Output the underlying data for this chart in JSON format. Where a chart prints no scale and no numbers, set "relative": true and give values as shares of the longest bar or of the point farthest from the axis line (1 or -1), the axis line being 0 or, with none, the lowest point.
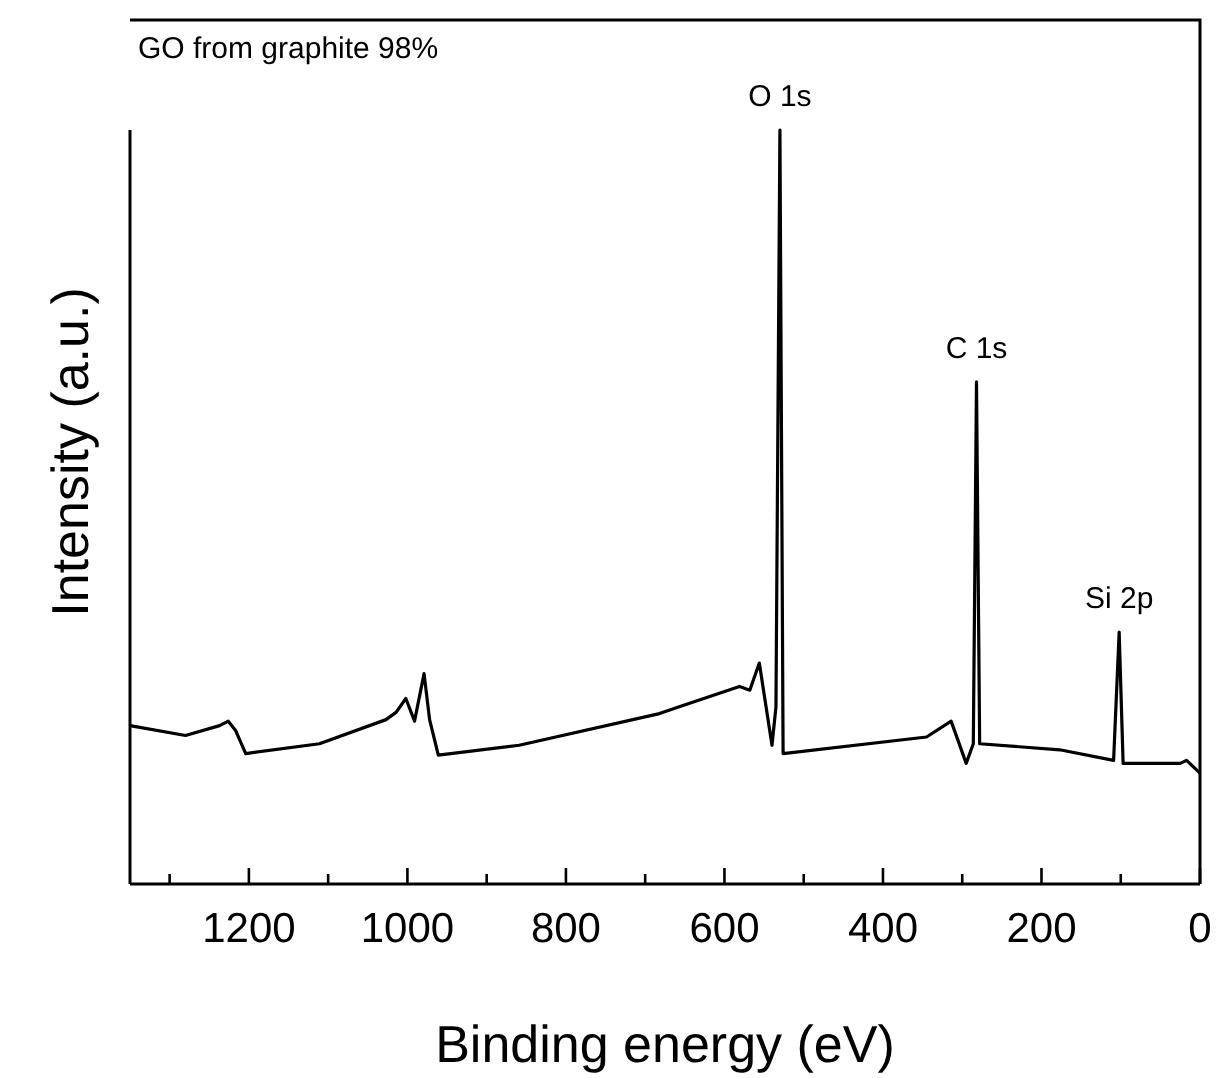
{
  "chart_data": {
    "type": "line",
    "title": "GO from graphite 98%",
    "xlabel": "Binding energy (eV)",
    "ylabel": "Intensity (a.u.)",
    "relative": true,
    "xlim": [
      1350,
      0
    ],
    "xticks": [
      {
        "value": 1300,
        "label": null
      },
      1200,
      {
        "value": 1100,
        "label": null
      },
      1000,
      {
        "value": 900,
        "label": null
      },
      800,
      {
        "value": 700,
        "label": null
      },
      600,
      {
        "value": 500,
        "label": null
      },
      400,
      {
        "value": 300,
        "label": null
      },
      200,
      {
        "value": 100,
        "label": null
      },
      0
    ],
    "x": [
      1350,
      1280,
      1237,
      1226,
      1217,
      1204,
      1111,
      1027,
      1014,
      1002,
      991,
      979,
      972,
      961,
      859,
      682,
      657,
      581,
      568,
      556,
      540,
      535,
      530,
      526,
      345,
      314,
      295,
      286,
      282,
      278,
      177,
      109,
      102,
      97,
      25,
      17,
      0
    ],
    "series": [
      {
        "color": "#000000",
        "values": [
          0.21,
          0.197,
          0.21,
          0.216,
          0.204,
          0.173,
          0.186,
          0.218,
          0.228,
          0.246,
          0.216,
          0.279,
          0.218,
          0.171,
          0.184,
          0.226,
          0.235,
          0.262,
          0.257,
          0.293,
          0.184,
          0.235,
          1.0,
          0.173,
          0.195,
          0.216,
          0.16,
          0.186,
          0.666,
          0.186,
          0.178,
          0.164,
          0.334,
          0.16,
          0.16,
          0.164,
          0.147
        ]
      }
    ],
    "annotations": [
      {
        "text": "O 1s",
        "x": 530,
        "y": 1.0
      },
      {
        "text": "C 1s",
        "x": 282,
        "y": 0.666
      },
      {
        "text": "Si 2p",
        "x": 102,
        "y": 0.334
      }
    ],
    "marker": "none",
    "line_style": "solid"
  }
}
